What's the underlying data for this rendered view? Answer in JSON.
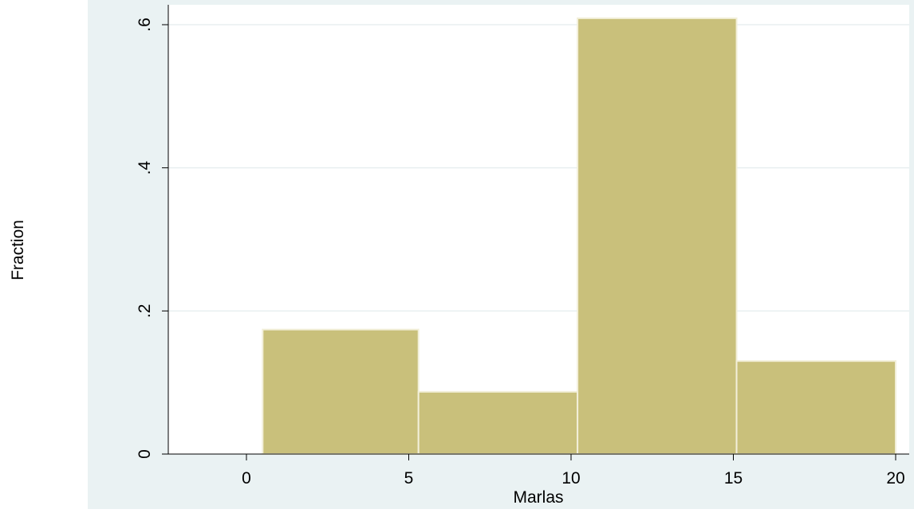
{
  "chart_data": {
    "type": "bar",
    "title": "",
    "xlabel": "Marlas",
    "ylabel": "Fraction",
    "xlim": [
      -2.3,
      20
    ],
    "ylim": [
      0,
      0.6
    ],
    "x_ticks": [
      0,
      5,
      10,
      15,
      20
    ],
    "x_tick_labels": [
      "0",
      "5",
      "10",
      "15",
      "20"
    ],
    "y_ticks": [
      0,
      0.2,
      0.4,
      0.6
    ],
    "y_tick_labels": [
      "0",
      ".2",
      ".4",
      ".6"
    ],
    "grid": true,
    "legend": false,
    "bins": [
      {
        "start": 0.5,
        "end": 5.3,
        "value": 0.174
      },
      {
        "start": 5.3,
        "end": 10.2,
        "value": 0.087
      },
      {
        "start": 10.2,
        "end": 15.1,
        "value": 0.609
      },
      {
        "start": 15.1,
        "end": 20.0,
        "value": 0.13
      }
    ],
    "colors": {
      "bar_fill": "#c9c07b",
      "bar_stroke": "#f2efd9",
      "outer_background": "#eaf2f3",
      "plot_background": "#ffffff",
      "grid": "#e8eff0",
      "axis": "#000000"
    }
  }
}
